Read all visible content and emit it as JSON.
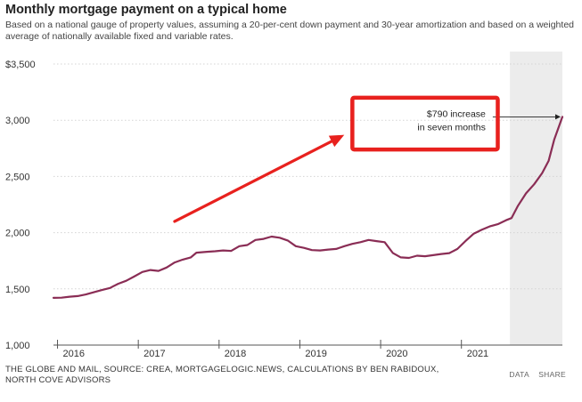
{
  "chart_data": {
    "type": "line",
    "title": "Monthly mortgage payment on a typical home",
    "subtitle": "Based on a national gauge of property values, assuming a 20-per-cent down payment and 30-year amortization and based on a weighted average of nationally available fixed and variable rates.",
    "xlabel": "",
    "ylabel": "",
    "ylim": [
      1000,
      3500
    ],
    "xlim": [
      2015.95,
      2022.25
    ],
    "y_ticks": [
      {
        "value": 3500,
        "label": "$3,500"
      },
      {
        "value": 3000,
        "label": "3,000"
      },
      {
        "value": 2500,
        "label": "2,500"
      },
      {
        "value": 2000,
        "label": "2,000"
      },
      {
        "value": 1500,
        "label": "1,500"
      },
      {
        "value": 1000,
        "label": "1,000"
      }
    ],
    "x_ticks": [
      {
        "value": 2016,
        "label": "2016"
      },
      {
        "value": 2017,
        "label": "2017"
      },
      {
        "value": 2018,
        "label": "2018"
      },
      {
        "value": 2019,
        "label": "2019"
      },
      {
        "value": 2020,
        "label": "2020"
      },
      {
        "value": 2021,
        "label": "2021"
      }
    ],
    "grid": true,
    "shaded_region": [
      2021.6,
      2022.25
    ],
    "annotation": {
      "lines": [
        "$790 increase",
        "in seven months"
      ],
      "point": [
        2022.25,
        3030
      ]
    },
    "series": [
      {
        "name": "Monthly mortgage payment",
        "color": "#8a2d55",
        "points": [
          [
            2015.95,
            1420
          ],
          [
            2016.05,
            1422
          ],
          [
            2016.15,
            1430
          ],
          [
            2016.25,
            1436
          ],
          [
            2016.35,
            1450
          ],
          [
            2016.45,
            1470
          ],
          [
            2016.55,
            1490
          ],
          [
            2016.65,
            1508
          ],
          [
            2016.75,
            1545
          ],
          [
            2016.85,
            1572
          ],
          [
            2016.95,
            1610
          ],
          [
            2017.05,
            1650
          ],
          [
            2017.15,
            1668
          ],
          [
            2017.25,
            1660
          ],
          [
            2017.35,
            1690
          ],
          [
            2017.45,
            1735
          ],
          [
            2017.55,
            1760
          ],
          [
            2017.65,
            1780
          ],
          [
            2017.72,
            1822
          ],
          [
            2017.85,
            1830
          ],
          [
            2017.95,
            1835
          ],
          [
            2018.05,
            1842
          ],
          [
            2018.15,
            1838
          ],
          [
            2018.25,
            1880
          ],
          [
            2018.35,
            1890
          ],
          [
            2018.45,
            1935
          ],
          [
            2018.55,
            1945
          ],
          [
            2018.65,
            1965
          ],
          [
            2018.75,
            1955
          ],
          [
            2018.85,
            1930
          ],
          [
            2018.95,
            1880
          ],
          [
            2019.05,
            1865
          ],
          [
            2019.15,
            1845
          ],
          [
            2019.25,
            1842
          ],
          [
            2019.35,
            1850
          ],
          [
            2019.45,
            1855
          ],
          [
            2019.55,
            1880
          ],
          [
            2019.65,
            1900
          ],
          [
            2019.75,
            1915
          ],
          [
            2019.85,
            1935
          ],
          [
            2019.95,
            1925
          ],
          [
            2020.05,
            1915
          ],
          [
            2020.15,
            1820
          ],
          [
            2020.25,
            1780
          ],
          [
            2020.35,
            1775
          ],
          [
            2020.45,
            1795
          ],
          [
            2020.55,
            1790
          ],
          [
            2020.65,
            1800
          ],
          [
            2020.75,
            1810
          ],
          [
            2020.85,
            1818
          ],
          [
            2020.95,
            1855
          ],
          [
            2021.05,
            1925
          ],
          [
            2021.15,
            1990
          ],
          [
            2021.25,
            2025
          ],
          [
            2021.35,
            2055
          ],
          [
            2021.45,
            2075
          ],
          [
            2021.55,
            2110
          ],
          [
            2021.62,
            2130
          ],
          [
            2021.7,
            2240
          ],
          [
            2021.8,
            2350
          ],
          [
            2021.9,
            2430
          ],
          [
            2022.0,
            2530
          ],
          [
            2022.08,
            2640
          ],
          [
            2022.15,
            2830
          ],
          [
            2022.25,
            3030
          ]
        ]
      }
    ],
    "pointer_arrow": {
      "from": [
        2017.45,
        2100
      ],
      "to": [
        2019.55,
        2870
      ],
      "color": "#e8211e"
    },
    "highlight_box": {
      "x": [
        2019.65,
        2021.45
      ],
      "y": [
        2740,
        3200
      ],
      "color": "#e8211e"
    }
  },
  "source_text": "THE GLOBE AND MAIL, SOURCE: CREA, MORTGAGELOGIC.NEWS, CALCULATIONS BY BEN RABIDOUX, NORTH COVE ADVISORS",
  "footer": {
    "data_label": "DATA",
    "share_label": "SHARE"
  }
}
